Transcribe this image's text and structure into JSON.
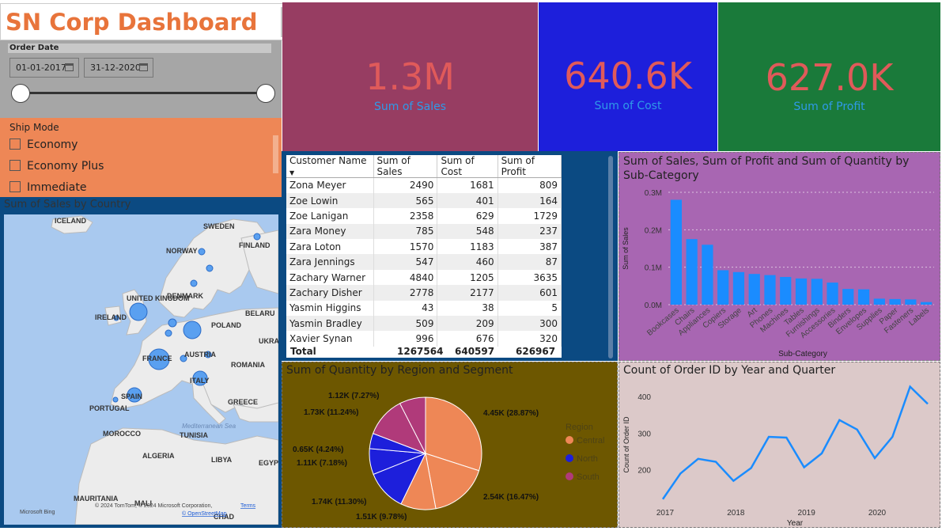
{
  "header": {
    "title": "SN Corp Dashboard"
  },
  "filters": {
    "order_date": {
      "label": "Order Date",
      "start": "01-01-2017",
      "end": "31-12-2020"
    },
    "ship_mode": {
      "label": "Ship Mode",
      "options": [
        "Economy",
        "Economy Plus",
        "Immediate"
      ]
    }
  },
  "kpis": [
    {
      "value": "1.3M",
      "label": "Sum of Sales",
      "bg": "#973d62"
    },
    {
      "value": "640.6K",
      "label": "Sum of Cost",
      "bg": "#1d1fdb"
    },
    {
      "value": "627.0K",
      "label": "Sum of Profit",
      "bg": "#1a7a3a"
    }
  ],
  "map": {
    "title": "Sum of Sales by Country",
    "labels": [
      "ICELAND",
      "SWEDEN",
      "FINLAND",
      "NORWAY",
      "UNITED KINGDOM",
      "DENMARK",
      "IRELAND",
      "BELARU",
      "POLAND",
      "UKRA",
      "FRANCE",
      "AUSTRIA",
      "ROMANIA",
      "ITALY",
      "SPAIN",
      "PORTUGAL",
      "GREECE",
      "MOROCCO",
      "ALGERIA",
      "LIBYA",
      "EGYP",
      "TUNISIA",
      "MAURITANIA",
      "MALI",
      "CHAD",
      "Mediterranean Sea"
    ],
    "attribution": "© 2024 TomTom, © 2024 Microsoft Corporation,",
    "terms": "Terms",
    "osm": "© OpenStreetMap",
    "bing": "Microsoft Bing"
  },
  "table": {
    "columns": [
      "Customer Name",
      "Sum of Sales",
      "Sum of Cost",
      "Sum of Profit"
    ],
    "rows": [
      [
        "Zona Meyer",
        "2490",
        "1681",
        "809"
      ],
      [
        "Zoe Lowin",
        "565",
        "401",
        "164"
      ],
      [
        "Zoe Lanigan",
        "2358",
        "629",
        "1729"
      ],
      [
        "Zara Money",
        "785",
        "548",
        "237"
      ],
      [
        "Zara Loton",
        "1570",
        "1183",
        "387"
      ],
      [
        "Zara Jennings",
        "547",
        "460",
        "87"
      ],
      [
        "Zachary Warner",
        "4840",
        "1205",
        "3635"
      ],
      [
        "Zachary Disher",
        "2778",
        "2177",
        "601"
      ],
      [
        "Yasmin Higgins",
        "43",
        "38",
        "5"
      ],
      [
        "Yasmin Bradley",
        "509",
        "209",
        "300"
      ],
      [
        "Xavier Synan",
        "996",
        "676",
        "320"
      ]
    ],
    "total": [
      "Total",
      "1267564",
      "640597",
      "626967"
    ]
  },
  "bar_chart": {
    "title": "Sum of Sales, Sum of Profit and Sum of Quantity by Sub-Category",
    "ylabel": "Sum of Sales",
    "xlabel": "Sub-Category",
    "yticks": [
      "0.0M",
      "0.1M",
      "0.2M",
      "0.3M"
    ]
  },
  "pie_chart": {
    "title": "Sum of Quantity by Region and Segment",
    "legend_title": "Region",
    "legend": [
      {
        "name": "Central",
        "color": "#ee8756"
      },
      {
        "name": "North",
        "color": "#1d1fdb"
      },
      {
        "name": "South",
        "color": "#b03a7a"
      }
    ]
  },
  "line_chart": {
    "title": "Count of Order ID by Year and Quarter",
    "ylabel": "Count of Order ID",
    "xlabel": "Year",
    "yticks": [
      "200",
      "300",
      "400"
    ],
    "xticks": [
      "2017",
      "2018",
      "2019",
      "2020"
    ]
  },
  "chart_data": [
    {
      "type": "bar",
      "title": "Sum of Sales, Sum of Profit and Sum of Quantity by Sub-Category",
      "xlabel": "Sub-Category",
      "ylabel": "Sum of Sales",
      "ylim": [
        0,
        0.3
      ],
      "categories": [
        "Bookcases",
        "Chairs",
        "Appliances",
        "Copiers",
        "Storage",
        "Art",
        "Phones",
        "Machines",
        "Tables",
        "Furnishings",
        "Accessories",
        "Binders",
        "Envelopes",
        "Supplies",
        "Paper",
        "Fasteners",
        "Labels"
      ],
      "values": [
        0.28,
        0.175,
        0.16,
        0.092,
        0.087,
        0.082,
        0.079,
        0.074,
        0.07,
        0.069,
        0.059,
        0.042,
        0.041,
        0.016,
        0.015,
        0.014,
        0.007
      ],
      "grid": true
    },
    {
      "type": "pie",
      "title": "Sum of Quantity by Region and Segment",
      "slices": [
        {
          "label": "4.45K (28.87%)",
          "value": 28.87,
          "region": "Central"
        },
        {
          "label": "2.54K (16.47%)",
          "value": 16.47,
          "region": "Central"
        },
        {
          "label": "1.51K (9.78%)",
          "value": 9.78,
          "region": "Central"
        },
        {
          "label": "1.74K (11.30%)",
          "value": 11.3,
          "region": "North"
        },
        {
          "label": "1.11K (7.18%)",
          "value": 7.18,
          "region": "North"
        },
        {
          "label": "0.65K (4.24%)",
          "value": 4.24,
          "region": "North"
        },
        {
          "label": "1.73K (11.24%)",
          "value": 11.24,
          "region": "South"
        },
        {
          "label": "1.12K (7.27%)",
          "value": 7.27,
          "region": "South"
        }
      ]
    },
    {
      "type": "line",
      "title": "Count of Order ID by Year and Quarter",
      "xlabel": "Year",
      "ylabel": "Count of Order ID",
      "ylim": [
        100,
        450
      ],
      "x": [
        "2017 Q1",
        "2017 Q2",
        "2017 Q3",
        "2017 Q4",
        "2018 Q1",
        "2018 Q2",
        "2018 Q3",
        "2018 Q4",
        "2019 Q1",
        "2019 Q2",
        "2019 Q3",
        "2019 Q4",
        "2020 Q1",
        "2020 Q2",
        "2020 Q3",
        "2020 Q4"
      ],
      "values": [
        120,
        190,
        230,
        222,
        170,
        205,
        290,
        288,
        207,
        245,
        336,
        310,
        232,
        290,
        427,
        380
      ]
    }
  ]
}
